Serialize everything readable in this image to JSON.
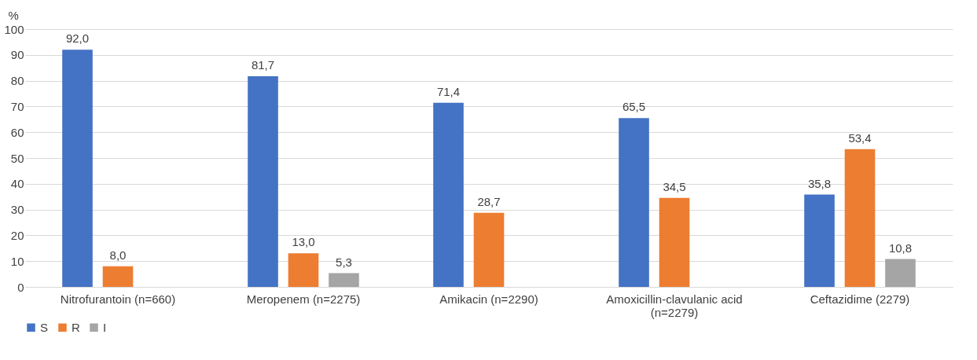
{
  "chart_data": {
    "type": "bar",
    "ylabel": "%",
    "categories": [
      "Nitrofurantoin (n=660)",
      "Meropenem (n=2275)",
      "Amikacin (n=2290)",
      "Amoxicillin-clavulanic acid (n=2279)",
      "Ceftazidime (2279)"
    ],
    "series": [
      {
        "name": "S",
        "color": "#4472c4",
        "values": [
          92.0,
          81.7,
          71.4,
          65.5,
          35.8
        ],
        "value_labels": [
          "92,0",
          "81,7",
          "71,4",
          "65,5",
          "35,8"
        ]
      },
      {
        "name": "R",
        "color": "#ed7d31",
        "values": [
          8.0,
          13.0,
          28.7,
          34.5,
          53.4
        ],
        "value_labels": [
          "8,0",
          "13,0",
          "28,7",
          "34,5",
          "53,4"
        ]
      },
      {
        "name": "I",
        "color": "#a5a5a5",
        "values": [
          null,
          5.3,
          null,
          null,
          10.8
        ],
        "value_labels": [
          null,
          "5,3",
          null,
          null,
          "10,8"
        ]
      }
    ],
    "ylim": [
      0,
      100
    ],
    "yticks": [
      0,
      10,
      20,
      30,
      40,
      50,
      60,
      70,
      80,
      90,
      100
    ],
    "grid": "y",
    "legend": "bottom"
  }
}
